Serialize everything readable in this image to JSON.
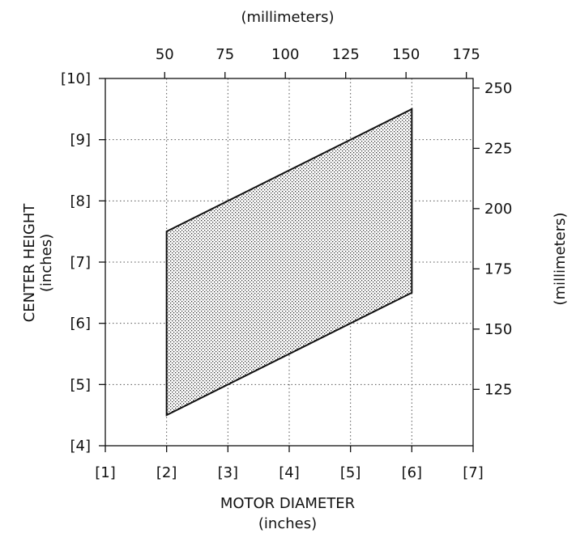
{
  "chart_data": {
    "type": "area",
    "title": "",
    "x_axis_bottom": {
      "label_line1": "MOTOR DIAMETER",
      "label_line2": "(inches)",
      "range": [
        1,
        7
      ],
      "ticks": [
        1,
        2,
        3,
        4,
        5,
        6,
        7
      ],
      "tick_labels": [
        "[1]",
        "[2]",
        "[3]",
        "[4]",
        "[5]",
        "[6]",
        "[7]"
      ]
    },
    "x_axis_top": {
      "label": "(millimeters)",
      "ticks": [
        50,
        75,
        100,
        125,
        150,
        175
      ],
      "tick_labels": [
        "50",
        "75",
        "100",
        "125",
        "150",
        "175"
      ]
    },
    "y_axis_left": {
      "label_line1": "CENTER HEIGHT",
      "label_line2": "(inches)",
      "range": [
        4,
        10
      ],
      "ticks": [
        4,
        5,
        6,
        7,
        8,
        9,
        10
      ],
      "tick_labels": [
        "[4]",
        "[5]",
        "[6]",
        "[7]",
        "[8]",
        "[9]",
        "[10]"
      ]
    },
    "y_axis_right": {
      "label": "(millimeters)",
      "ticks": [
        125,
        150,
        175,
        200,
        225,
        250
      ],
      "tick_labels": [
        "125",
        "150",
        "175",
        "200",
        "225",
        "250"
      ]
    },
    "grid": "dotted",
    "region": {
      "fill_pattern": "stippled",
      "vertices_inches": [
        [
          2,
          4.5
        ],
        [
          2,
          7.5
        ],
        [
          6,
          9.5
        ],
        [
          6,
          6.5
        ]
      ]
    }
  }
}
